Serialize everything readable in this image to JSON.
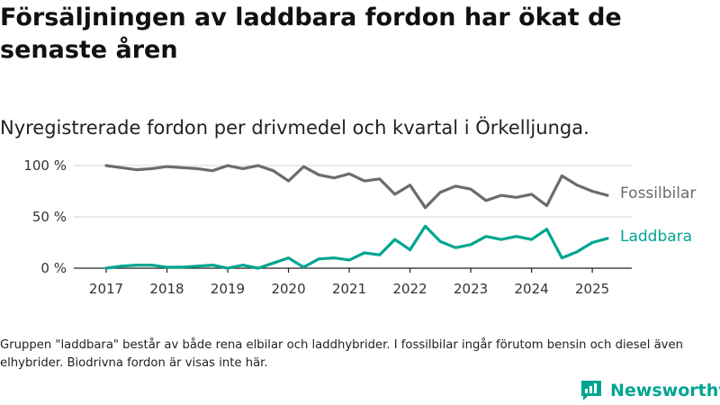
{
  "title": "Försäljningen av laddbara fordon har ökat de senaste åren",
  "subtitle": "Nyregistrerade fordon per drivmedel och kvartal i Örkelljunga.",
  "note": "Gruppen \"laddbara\" består av både rena elbilar och laddhybrider. I fossilbilar ingår förutom bensin och diesel även elhybrider. Biodrivna fordon är visas inte här.",
  "brand": {
    "name": "Newsworthy",
    "logo_icon": "newsworthy-logo-icon"
  },
  "chart_data": {
    "type": "line",
    "x_ticks": [
      "2017",
      "2018",
      "2019",
      "2020",
      "2021",
      "2022",
      "2023",
      "2024",
      "2025"
    ],
    "y_ticks": [
      "0 %",
      "50 %",
      "100 %"
    ],
    "ylim": [
      0,
      100
    ],
    "grid": true,
    "series": [
      {
        "name": "Fossilbilar",
        "color": "#6b6b70",
        "values": [
          100,
          98,
          96,
          97,
          99,
          98,
          97,
          95,
          100,
          97,
          100,
          95,
          85,
          99,
          91,
          88,
          92,
          85,
          87,
          72,
          81,
          59,
          74,
          80,
          77,
          66,
          71,
          69,
          72,
          61,
          90,
          81,
          75,
          71
        ]
      },
      {
        "name": "Laddbara",
        "color": "#00a591",
        "values": [
          0,
          2,
          3,
          3,
          1,
          1,
          2,
          3,
          0,
          3,
          0,
          5,
          10,
          1,
          9,
          10,
          8,
          15,
          13,
          28,
          18,
          41,
          26,
          20,
          23,
          31,
          28,
          31,
          28,
          38,
          10,
          16,
          25,
          29
        ]
      }
    ]
  }
}
